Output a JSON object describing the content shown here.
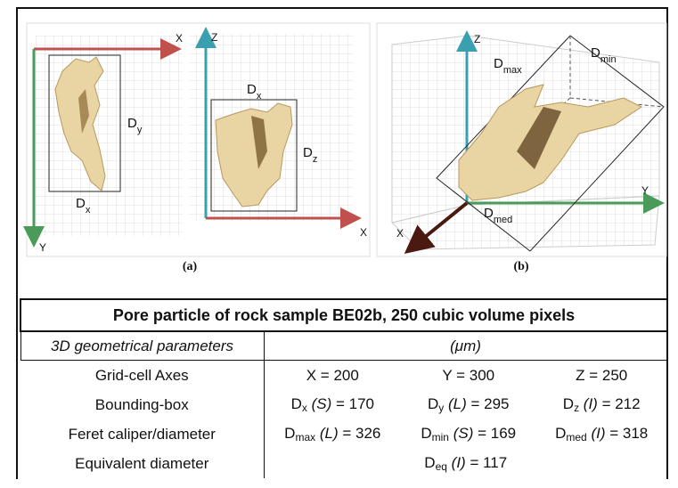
{
  "figure": {
    "panel_a": {
      "axes": {
        "x_top": "X",
        "y": "Y",
        "z": "Z",
        "x_bottom": "X"
      },
      "labels": {
        "dy": {
          "base": "D",
          "sub": "y"
        },
        "dx_left": {
          "base": "D",
          "sub": "x"
        },
        "dx_right": {
          "base": "D",
          "sub": "x"
        },
        "dz": {
          "base": "D",
          "sub": "z"
        }
      },
      "caption": "(a)"
    },
    "panel_b": {
      "axes": {
        "z": "Z",
        "y": "Y",
        "x": "X"
      },
      "labels": {
        "dmax": {
          "base": "D",
          "sub": "max"
        },
        "dmin": {
          "base": "D",
          "sub": "min"
        },
        "dmed": {
          "base": "D",
          "sub": "med"
        }
      },
      "caption": "(b)"
    }
  },
  "table": {
    "title": "Pore particle of rock sample BE02b, 250 cubic volume pixels",
    "header": [
      "3D geometrical parameters",
      "(μm)"
    ],
    "rows": [
      {
        "label": "Grid-cell Axes",
        "cells": [
          {
            "text": "X = 200"
          },
          {
            "text": "Y = 300"
          },
          {
            "text": "Z = 250"
          }
        ]
      },
      {
        "label": "Bounding-box",
        "cells": [
          {
            "base": "D",
            "sub": "x",
            "size": "(S)",
            "rel": "= 170"
          },
          {
            "base": "D",
            "sub": "y",
            "size": "(L)",
            "rel": "= 295"
          },
          {
            "base": "D",
            "sub": "z",
            "size": "(I)",
            "rel": "= 212"
          }
        ]
      },
      {
        "label": "Feret caliper/diameter",
        "cells": [
          {
            "base": "D",
            "sub": "max",
            "size": "(L)",
            "rel": "= 326"
          },
          {
            "base": "D",
            "sub": "min",
            "size": "(S)",
            "rel": "= 169"
          },
          {
            "base": "D",
            "sub": "med",
            "size": "(I)",
            "rel": "= 318"
          }
        ]
      },
      {
        "label": "Equivalent diameter",
        "cells": [
          {
            "base": "D",
            "sub": "eq",
            "size": "(I)",
            "rel": "= 117"
          }
        ]
      }
    ]
  }
}
